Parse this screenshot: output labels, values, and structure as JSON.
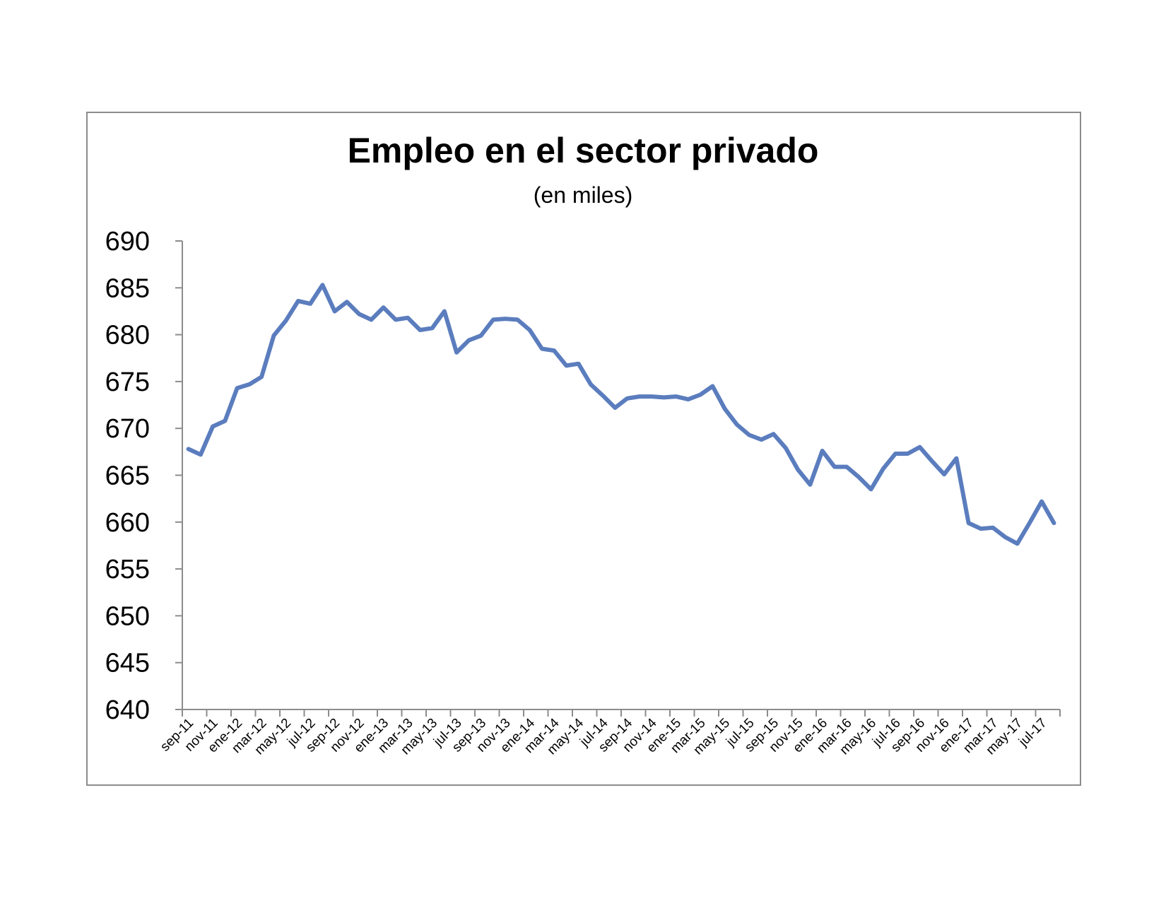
{
  "chart_data": {
    "type": "line",
    "title": "Empleo en el sector privado",
    "subtitle": "(en miles)",
    "xlabel": "",
    "ylabel": "",
    "ylim": [
      640,
      690
    ],
    "yticks": [
      640,
      645,
      650,
      655,
      660,
      665,
      670,
      675,
      680,
      685,
      690
    ],
    "grid": false,
    "legend": "none",
    "line_color": "#5b7dbe",
    "x": [
      "sep-11",
      "oct-11",
      "nov-11",
      "dic-11",
      "ene-12",
      "feb-12",
      "mar-12",
      "abr-12",
      "may-12",
      "jun-12",
      "jul-12",
      "ago-12",
      "sep-12",
      "oct-12",
      "nov-12",
      "dic-12",
      "ene-13",
      "feb-13",
      "mar-13",
      "abr-13",
      "may-13",
      "jun-13",
      "jul-13",
      "ago-13",
      "sep-13",
      "oct-13",
      "nov-13",
      "dic-13",
      "ene-14",
      "feb-14",
      "mar-14",
      "abr-14",
      "may-14",
      "jun-14",
      "jul-14",
      "ago-14",
      "sep-14",
      "oct-14",
      "nov-14",
      "dic-14",
      "ene-15",
      "feb-15",
      "mar-15",
      "abr-15",
      "may-15",
      "jun-15",
      "jul-15",
      "ago-15",
      "sep-15",
      "oct-15",
      "nov-15",
      "dic-15",
      "ene-16",
      "feb-16",
      "mar-16",
      "abr-16",
      "may-16",
      "jun-16",
      "jul-16",
      "ago-16",
      "sep-16",
      "oct-16",
      "nov-16",
      "dic-16",
      "ene-17",
      "feb-17",
      "mar-17",
      "abr-17",
      "may-17",
      "jun-17",
      "jul-17",
      "ago-17"
    ],
    "tick_labels": [
      "sep-11",
      "nov-11",
      "ene-12",
      "mar-12",
      "may-12",
      "jul-12",
      "sep-12",
      "nov-12",
      "ene-13",
      "mar-13",
      "may-13",
      "jul-13",
      "sep-13",
      "nov-13",
      "ene-14",
      "mar-14",
      "may-14",
      "jul-14",
      "sep-14",
      "nov-14",
      "ene-15",
      "mar-15",
      "may-15",
      "jul-15",
      "sep-15",
      "nov-15",
      "ene-16",
      "mar-16",
      "may-16",
      "jul-16",
      "sep-16",
      "nov-16",
      "ene-17",
      "mar-17",
      "may-17",
      "jul-17"
    ],
    "series": [
      {
        "values": [
          667.8,
          667.2,
          670.2,
          670.8,
          674.3,
          674.7,
          675.5,
          679.9,
          681.5,
          683.6,
          683.3,
          685.3,
          682.5,
          683.5,
          682.2,
          681.6,
          682.9,
          681.6,
          681.8,
          680.5,
          680.7,
          682.5,
          678.1,
          679.4,
          679.9,
          681.6,
          681.7,
          681.6,
          680.5,
          678.5,
          678.3,
          676.7,
          676.9,
          674.7,
          673.5,
          672.2,
          673.2,
          673.4,
          673.4,
          673.3,
          673.4,
          673.1,
          673.6,
          674.5,
          672.1,
          670.4,
          669.3,
          668.8,
          669.4,
          667.9,
          665.6,
          664.0,
          667.6,
          665.9,
          665.9,
          664.8,
          663.5,
          665.7,
          667.3,
          667.3,
          668.0,
          666.5,
          665.1,
          666.8,
          659.9,
          659.3,
          659.4,
          658.4,
          657.7,
          659.9,
          662.2,
          659.9
        ]
      }
    ]
  }
}
